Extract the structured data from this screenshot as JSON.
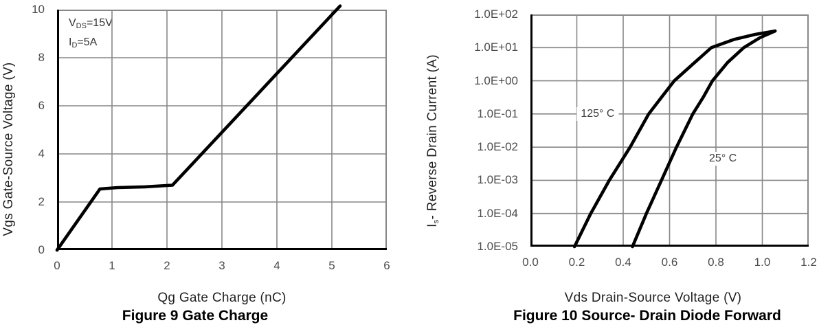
{
  "accent_colors": {
    "curve": "#000000",
    "grid": "#878787",
    "axis_spine": "#000000",
    "tick_text": "#4c4c4c",
    "label_text": "#1f1f1f"
  },
  "chart_data": [
    {
      "type": "line",
      "name": "fig9-gate-charge",
      "title": "Figure 9 Gate Charge",
      "xlabel": "Qg Gate Charge (nC)",
      "ylabel": "Vgs Gate-Source Voltage (V)",
      "xlim": [
        0,
        6
      ],
      "ylim": [
        0,
        10
      ],
      "grid": true,
      "legend": "none",
      "xticks": [
        {
          "v": 0,
          "label": "0"
        },
        {
          "v": 1,
          "label": "1"
        },
        {
          "v": 2,
          "label": "2"
        },
        {
          "v": 3,
          "label": "3"
        },
        {
          "v": 4,
          "label": "4"
        },
        {
          "v": 5,
          "label": "5"
        },
        {
          "v": 6,
          "label": "6"
        }
      ],
      "yticks": [
        {
          "v": 0,
          "label": "0"
        },
        {
          "v": 2,
          "label": "2"
        },
        {
          "v": 4,
          "label": "4"
        },
        {
          "v": 6,
          "label": "6"
        },
        {
          "v": 8,
          "label": "8"
        },
        {
          "v": 10,
          "label": "10"
        }
      ],
      "conditions": {
        "line1": {
          "base": "V",
          "sub": "DS",
          "rest": "=15V"
        },
        "line2": {
          "base": "I",
          "sub": "D",
          "rest": "=5A"
        }
      },
      "series": [
        {
          "name": "gate-charge-curve",
          "color": "#000000",
          "points": [
            [
              0,
              0
            ],
            [
              0.78,
              2.54
            ],
            [
              1.1,
              2.6
            ],
            [
              1.6,
              2.63
            ],
            [
              2.1,
              2.7
            ],
            [
              5.15,
              10.15
            ]
          ]
        }
      ]
    },
    {
      "type": "line",
      "name": "fig10-body-diode",
      "title": "Figure 10 Source- Drain Diode Forward",
      "xlabel": "Vds Drain-Source Voltage (V)",
      "ylabel_parts": {
        "base": "I",
        "sub": "s",
        "rest": "- Reverse Drain Current (A)"
      },
      "y_scale": "log10",
      "xlim": [
        0,
        1.2
      ],
      "ylim": [
        -5,
        2
      ],
      "grid": true,
      "legend": "inline-curve-labels",
      "xticks": [
        {
          "v": 0.0,
          "label": "0.0"
        },
        {
          "v": 0.2,
          "label": "0.2"
        },
        {
          "v": 0.4,
          "label": "0.4"
        },
        {
          "v": 0.6,
          "label": "0.6"
        },
        {
          "v": 0.8,
          "label": "0.8"
        },
        {
          "v": 1.0,
          "label": "1.0"
        },
        {
          "v": 1.2,
          "label": "1.2"
        }
      ],
      "yticks": [
        {
          "v": 2,
          "label": "1.0E+02"
        },
        {
          "v": 1,
          "label": "1.0E+01"
        },
        {
          "v": 0,
          "label": "1.0E+00"
        },
        {
          "v": -1,
          "label": "1.0E-01"
        },
        {
          "v": -2,
          "label": "1.0E-02"
        },
        {
          "v": -3,
          "label": "1.0E-03"
        },
        {
          "v": -4,
          "label": "1.0E-04"
        },
        {
          "v": -5,
          "label": "1.0E-05"
        }
      ],
      "series": [
        {
          "name": "curve-125C",
          "label": "125° C",
          "label_pos": [
            0.29,
            -1.0
          ],
          "color": "#000000",
          "points": [
            [
              0.19,
              -5
            ],
            [
              0.26,
              -4
            ],
            [
              0.34,
              -3
            ],
            [
              0.43,
              -2
            ],
            [
              0.51,
              -1
            ],
            [
              0.565,
              -0.5
            ],
            [
              0.62,
              0
            ],
            [
              0.7,
              0.5
            ],
            [
              0.78,
              1
            ],
            [
              0.88,
              1.25
            ],
            [
              0.97,
              1.4
            ],
            [
              1.055,
              1.5
            ]
          ]
        },
        {
          "name": "curve-25C",
          "label": "25° C",
          "label_pos": [
            0.83,
            -2.35
          ],
          "color": "#000000",
          "points": [
            [
              0.44,
              -5
            ],
            [
              0.5,
              -4
            ],
            [
              0.565,
              -3
            ],
            [
              0.63,
              -2
            ],
            [
              0.7,
              -1
            ],
            [
              0.745,
              -0.5
            ],
            [
              0.785,
              0
            ],
            [
              0.85,
              0.55
            ],
            [
              0.92,
              1
            ],
            [
              0.99,
              1.3
            ],
            [
              1.055,
              1.5
            ]
          ]
        }
      ]
    }
  ]
}
